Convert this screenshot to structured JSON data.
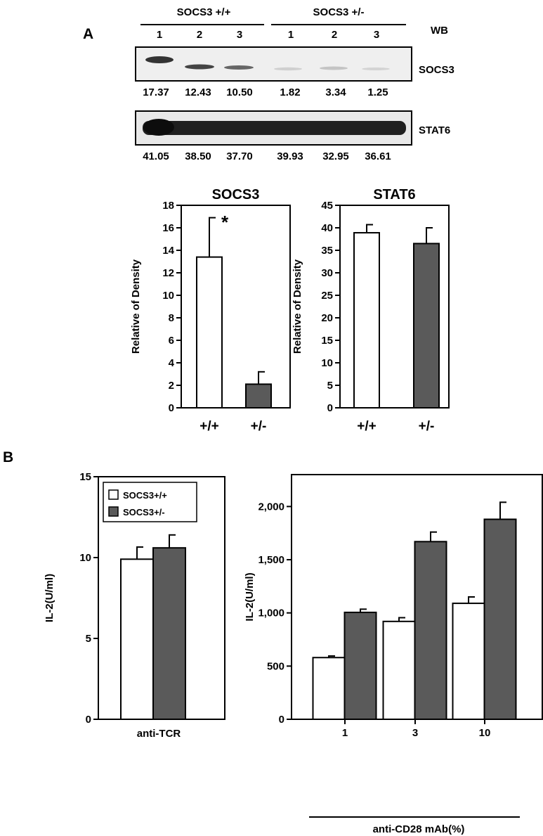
{
  "panel_a": {
    "label": "A",
    "group_labels": [
      "SOCS3 +/+",
      "SOCS3 +/-"
    ],
    "wb_label": "WB",
    "lanes": [
      "1",
      "2",
      "3",
      "1",
      "2",
      "3"
    ],
    "blots": [
      {
        "name": "SOCS3",
        "densities": [
          "17.37",
          "12.43",
          "10.50",
          "1.82",
          "3.34",
          "1.25"
        ]
      },
      {
        "name": "STAT6",
        "densities": [
          "41.05",
          "38.50",
          "37.70",
          "39.93",
          "32.95",
          "36.61"
        ]
      }
    ]
  },
  "panel_b": {
    "label": "B"
  },
  "colors": {
    "open_bar": "#ffffff",
    "filled_bar": "#5a5a5a",
    "axis": "#000000"
  },
  "chart_data": [
    {
      "type": "bar",
      "title": "SOCS3",
      "ylabel": "Relative of Density",
      "categories": [
        "+/+",
        "+/-"
      ],
      "values": [
        13.4,
        2.1
      ],
      "errors": [
        3.5,
        1.1
      ],
      "fills": [
        "open",
        "filled"
      ],
      "ylim": [
        0,
        18
      ],
      "yticks": [
        "0",
        "2",
        "4",
        "6",
        "8",
        "10",
        "12",
        "14",
        "16",
        "18"
      ],
      "annotation": "*"
    },
    {
      "type": "bar",
      "title": "STAT6",
      "ylabel": "Relative of Density",
      "categories": [
        "+/+",
        "+/-"
      ],
      "values": [
        38.9,
        36.5
      ],
      "errors": [
        1.8,
        3.5
      ],
      "fills": [
        "open",
        "filled"
      ],
      "ylim": [
        0,
        45
      ],
      "yticks": [
        "0",
        "5",
        "10",
        "15",
        "20",
        "25",
        "30",
        "35",
        "40",
        "45"
      ]
    },
    {
      "type": "bar",
      "ylabel": "IL-2(U/ml)",
      "xlabel": "anti-TCR",
      "categories": [
        ""
      ],
      "series": [
        {
          "name": "SOCS3+/+",
          "values": [
            9.9
          ],
          "errors": [
            0.75
          ]
        },
        {
          "name": "SOCS3+/-",
          "values": [
            10.6
          ],
          "errors": [
            0.8
          ]
        }
      ],
      "ylim": [
        0,
        15
      ],
      "yticks": [
        "0",
        "5",
        "10",
        "15"
      ],
      "legend": "top-left"
    },
    {
      "type": "bar",
      "ylabel": "IL-2(U/ml)",
      "xlabel": "anti-CD28 mAb(%)",
      "categories": [
        "1",
        "3",
        "10"
      ],
      "series": [
        {
          "name": "SOCS3+/+",
          "values": [
            580,
            920,
            1090
          ],
          "errors": [
            15,
            35,
            60
          ]
        },
        {
          "name": "SOCS3+/-",
          "values": [
            1005,
            1670,
            1880
          ],
          "errors": [
            30,
            90,
            160
          ]
        }
      ],
      "ylim": [
        0,
        2300
      ],
      "yticks": [
        "0",
        "500",
        "1,000",
        "1,500",
        "2,000"
      ],
      "ytick_values": [
        0,
        500,
        1000,
        1500,
        2000
      ]
    }
  ]
}
